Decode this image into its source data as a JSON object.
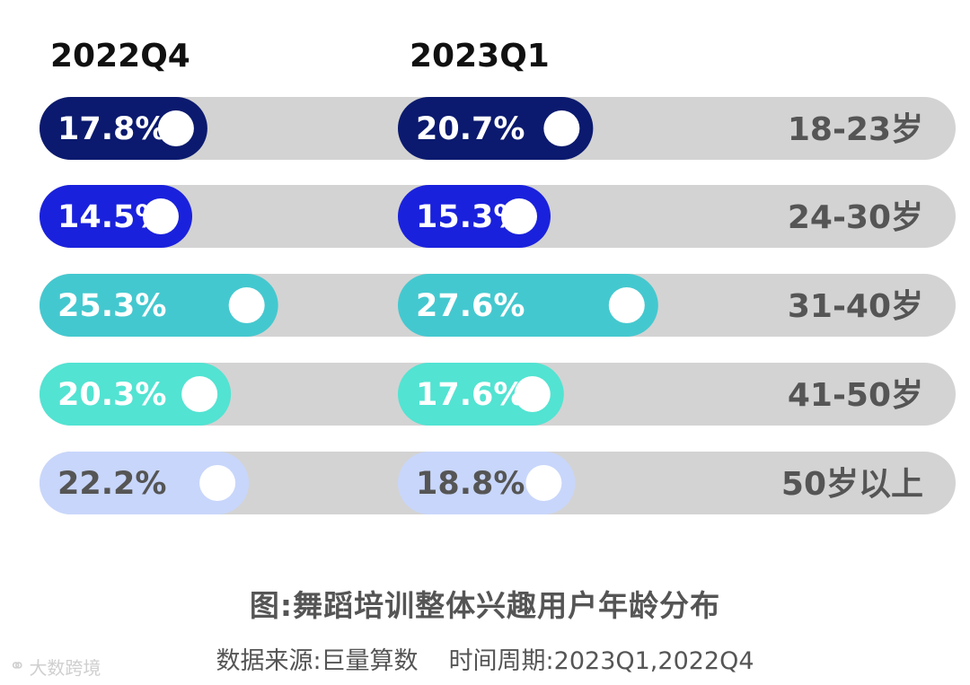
{
  "chart_data": {
    "type": "bar",
    "orientation": "horizontal",
    "categories": [
      "18-23岁",
      "24-30岁",
      "31-40岁",
      "41-50岁",
      "50岁以上"
    ],
    "series": [
      {
        "name": "2022Q4",
        "values": [
          17.8,
          14.5,
          25.3,
          20.3,
          22.2
        ],
        "labels": [
          "17.8%",
          "14.5%",
          "25.3%",
          "20.3%",
          "22.2%"
        ]
      },
      {
        "name": "2023Q1",
        "values": [
          20.7,
          15.3,
          27.6,
          17.6,
          18.8
        ],
        "labels": [
          "20.7%",
          "15.3%",
          "27.6%",
          "17.6%",
          "18.8%"
        ]
      }
    ],
    "colors": [
      "#0b1a6e",
      "#1a21dc",
      "#44c8cf",
      "#52e3d2",
      "#c8d6fb"
    ],
    "label_colors": [
      "#ffffff",
      "#ffffff",
      "#ffffff",
      "#ffffff",
      "#555555"
    ],
    "track_color": "#d3d3d3",
    "category_label_color": "#555555",
    "title": "图:舞蹈培训整体兴趣用户年龄分布",
    "source": "数据来源:巨量算数",
    "period": "时间周期:2023Q1,2022Q4",
    "unit": "%"
  },
  "watermark": {
    "icon": "bubble-logo-icon",
    "text": "大数跨境"
  }
}
